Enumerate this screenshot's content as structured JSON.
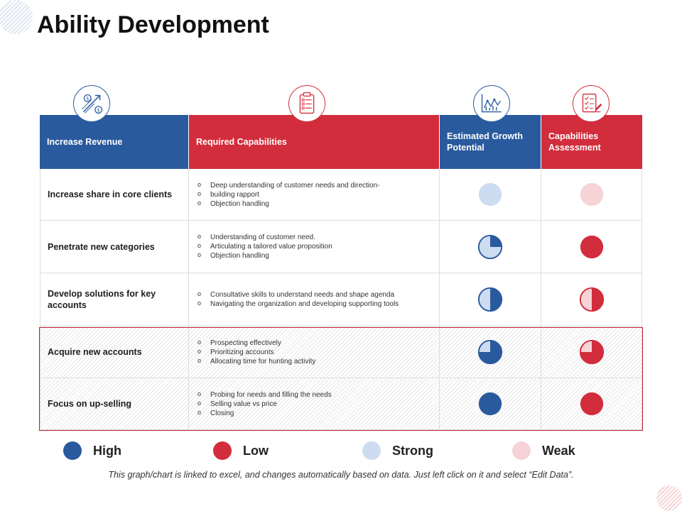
{
  "title": "Ability Development",
  "colors": {
    "blue": "#2a5a9e",
    "red": "#d22d3c",
    "light_blue": "#cddcf0",
    "light_pink": "#f6d3d6"
  },
  "header_icons": [
    "revenue-growth-icon",
    "clipboard-checklist-icon",
    "line-chart-icon",
    "assessment-report-icon"
  ],
  "table": {
    "headers": [
      "Increase Revenue",
      "Required Capabilities",
      "Estimated Growth Potential",
      "Capabilities Assessment"
    ],
    "rows": [
      {
        "name": "Increase share in core clients",
        "capabilities": [
          "Deep understanding of customer needs and direction-",
          "building rapport",
          "Objection handling"
        ],
        "growth_potential": "Strong",
        "growth_fill": 0,
        "assessment": "Weak",
        "assessment_fill": 0
      },
      {
        "name": "Penetrate new categories",
        "capabilities": [
          "Understanding of customer need.",
          "Articulating a tailored value proposition",
          "Objection handling"
        ],
        "growth_potential": "Strong",
        "growth_fill": 0.25,
        "assessment": "Low",
        "assessment_fill": 1
      },
      {
        "name": "Develop solutions  for key accounts",
        "capabilities": [
          "Consultative skills to understand needs and shape agenda",
          "Navigating the organization and developing supporting tools"
        ],
        "growth_potential": "Strong",
        "growth_fill": 0.5,
        "assessment": "Weak",
        "assessment_fill": 0.5
      },
      {
        "name": "Acquire new accounts",
        "capabilities": [
          "Prospecting effectively",
          "Prioritizing accounts",
          "Allocating time  for hunting activity"
        ],
        "growth_potential": "Strong",
        "growth_fill": 0.75,
        "assessment": "Weak",
        "assessment_fill": 0.75
      },
      {
        "name": "Focus on up-selling",
        "capabilities": [
          "Probing  for needs and filling the needs",
          "Selling value vs price",
          "Closing"
        ],
        "growth_potential": "High",
        "growth_fill": 1,
        "assessment": "Low",
        "assessment_fill": 1
      }
    ]
  },
  "legend": [
    {
      "label": "High",
      "color": "#2a5a9e"
    },
    {
      "label": "Low",
      "color": "#d22d3c"
    },
    {
      "label": "Strong",
      "color": "#cddcf0"
    },
    {
      "label": "Weak",
      "color": "#f6d3d6"
    }
  ],
  "footnote": "This graph/chart is linked to excel,  and changes automatically based on data. Just left click on it and select “Edit Data”."
}
